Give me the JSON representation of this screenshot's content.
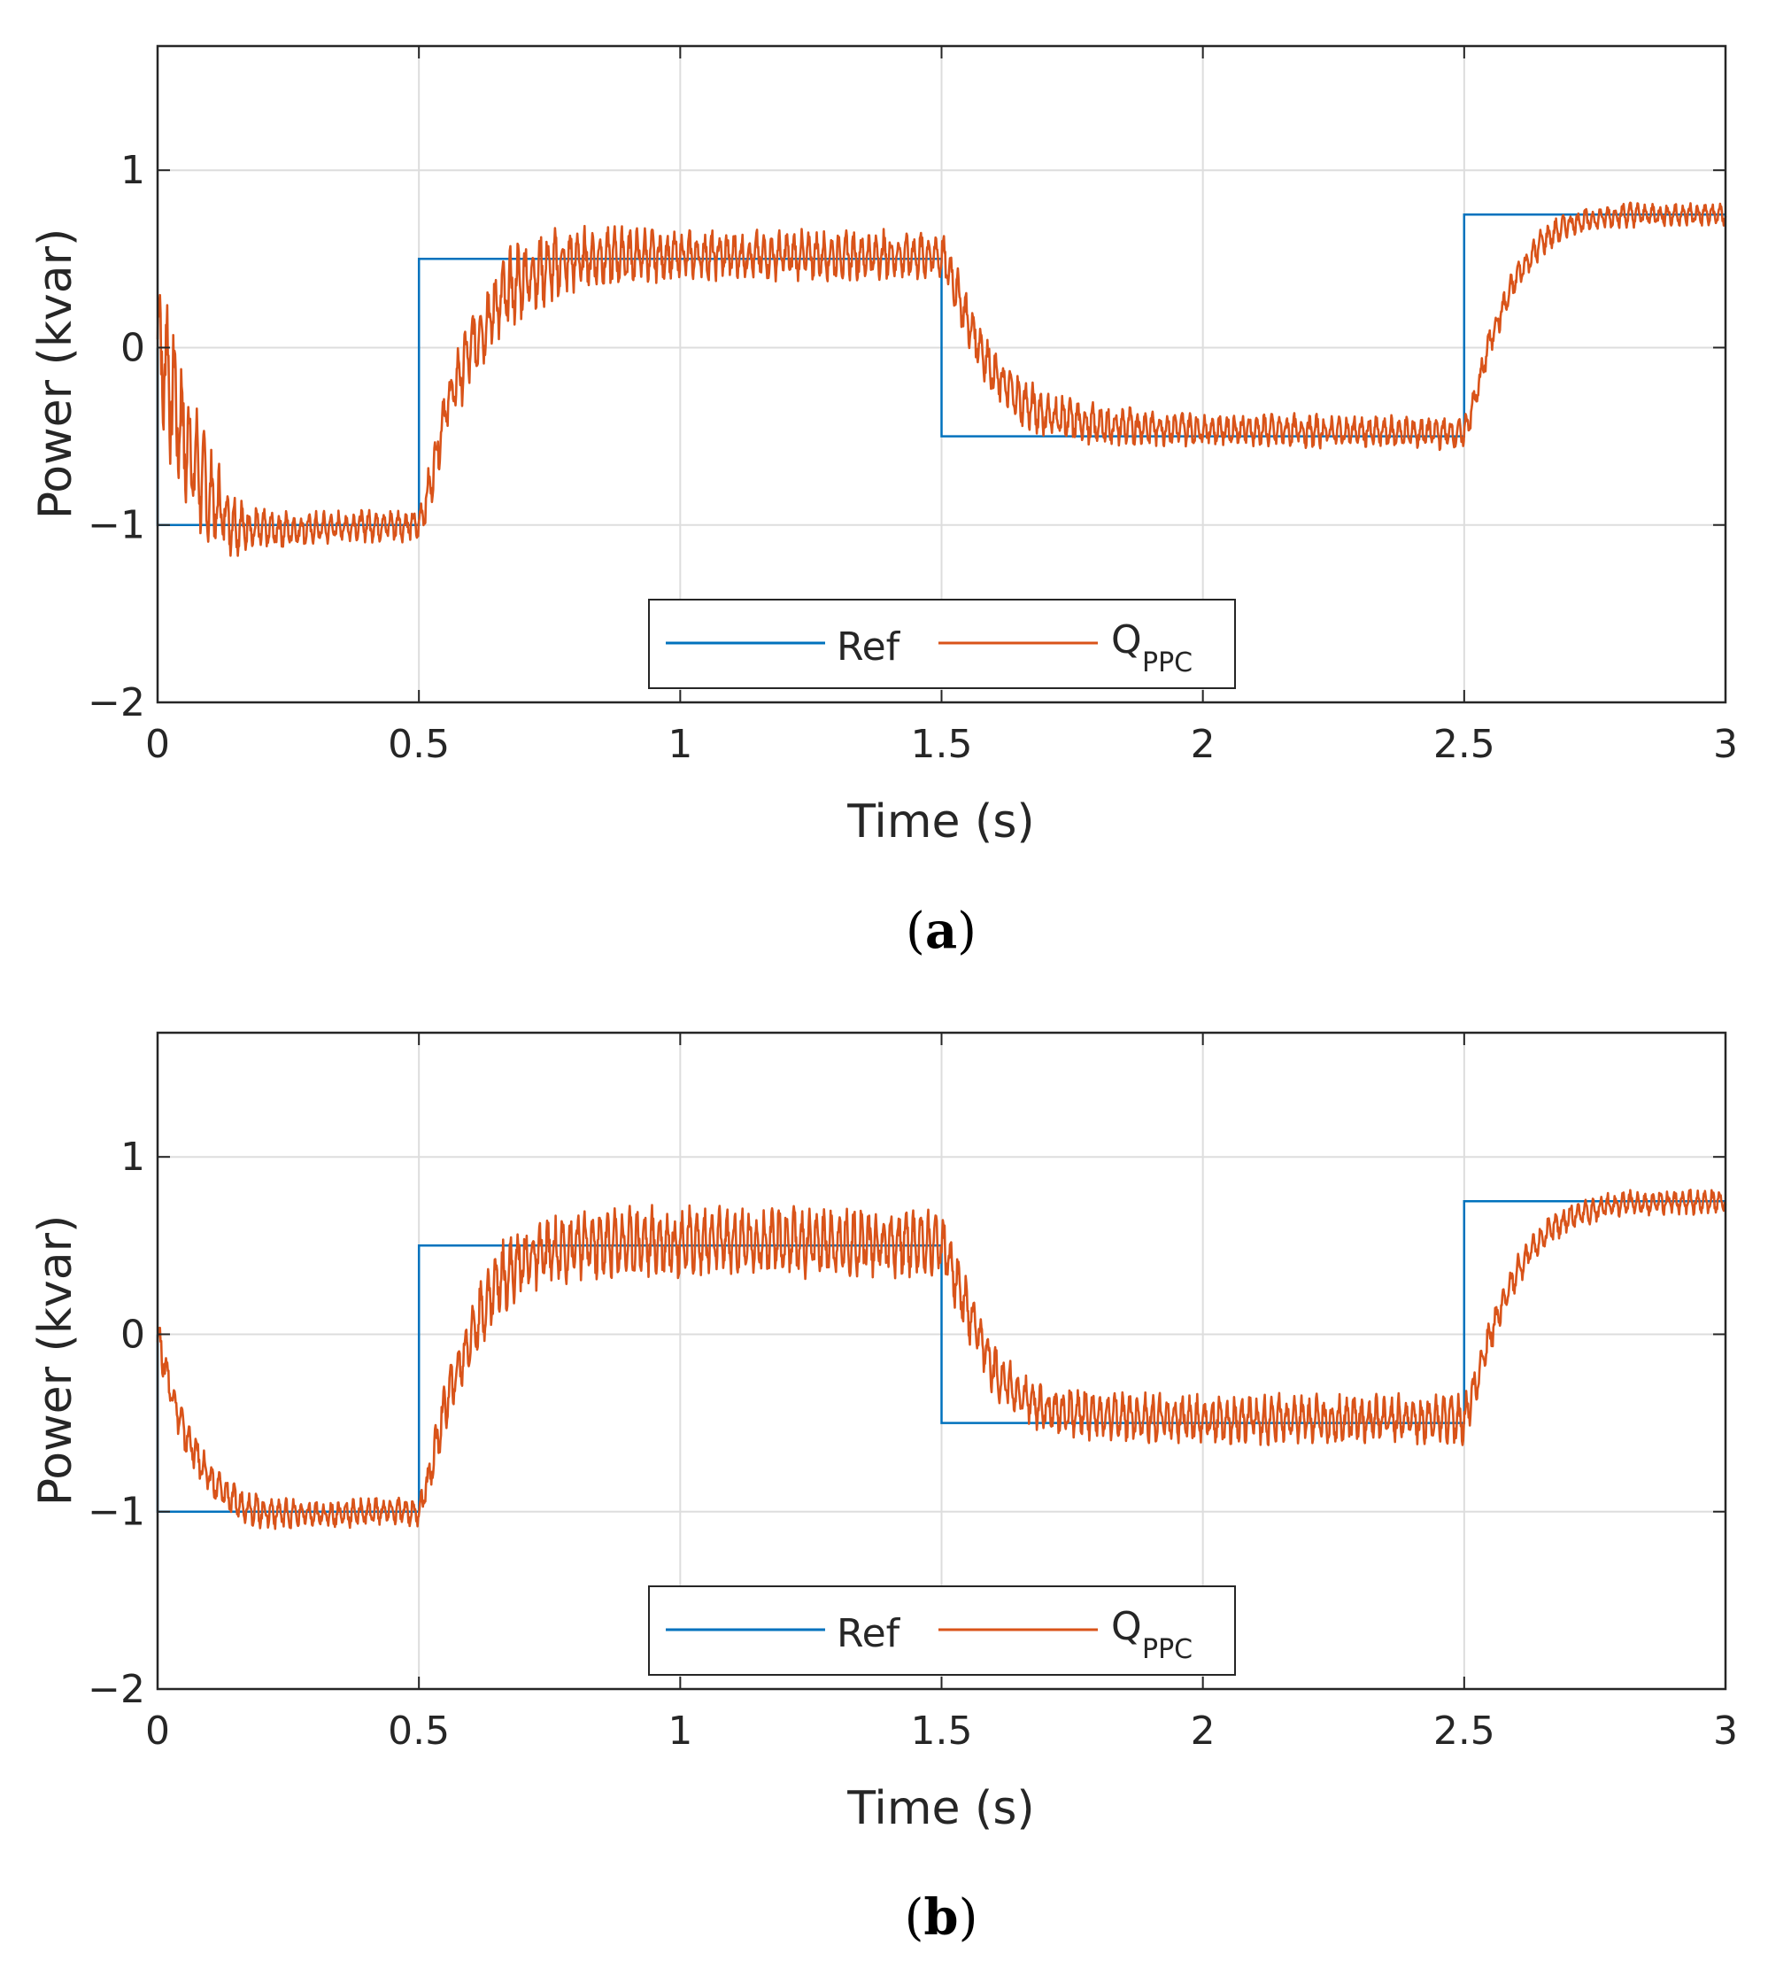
{
  "colors": {
    "ref": "#0072BD",
    "q": "#D95319",
    "grid": "#DDDDDD",
    "axis": "#262626"
  },
  "chart_data": [
    {
      "type": "line",
      "panel": "a",
      "caption_open": "(",
      "caption_letter": "a",
      "caption_close": ")",
      "xlabel": "Time (s)",
      "ylabel": "Power (kvar)",
      "xlim": [
        0,
        3
      ],
      "ylim": [
        -2,
        1.7
      ],
      "xticks": [
        0,
        0.5,
        1,
        1.5,
        2,
        2.5,
        3
      ],
      "xtick_labels": [
        "0",
        "0.5",
        "1",
        "1.5",
        "2",
        "2.5",
        "3"
      ],
      "yticks": [
        -2,
        -1,
        0,
        1
      ],
      "ytick_labels": [
        "−2",
        "−1",
        "0",
        "1"
      ],
      "grid": true,
      "legend": {
        "position": "bottom-center",
        "ref_label": "Ref",
        "q_label": "Q",
        "q_sub": "PPC"
      },
      "series": [
        {
          "name": "Ref",
          "x": [
            0,
            0,
            0.5,
            0.5,
            1.5,
            1.5,
            2.5,
            2.5,
            3
          ],
          "y": [
            0,
            -1,
            -1,
            0.5,
            0.5,
            -0.5,
            -0.5,
            0.75,
            0.75
          ]
        },
        {
          "name": "Q_PPC",
          "x": [
            0,
            0.02,
            0.05,
            0.1,
            0.15,
            0.2,
            0.3,
            0.4,
            0.5,
            0.52,
            0.55,
            0.6,
            0.65,
            0.7,
            0.8,
            0.9,
            1.0,
            1.2,
            1.4,
            1.5,
            1.52,
            1.55,
            1.6,
            1.65,
            1.7,
            1.8,
            2.0,
            2.2,
            2.4,
            2.5,
            2.52,
            2.55,
            2.6,
            2.65,
            2.7,
            2.8,
            3.0
          ],
          "y": [
            0.05,
            -0.15,
            -0.5,
            -0.85,
            -1.0,
            -1.03,
            -1.02,
            -1.0,
            -1.0,
            -0.8,
            -0.35,
            0.0,
            0.25,
            0.4,
            0.5,
            0.52,
            0.52,
            0.52,
            0.52,
            0.52,
            0.4,
            0.15,
            -0.15,
            -0.3,
            -0.38,
            -0.44,
            -0.46,
            -0.47,
            -0.48,
            -0.48,
            -0.3,
            0.05,
            0.4,
            0.6,
            0.7,
            0.75,
            0.75
          ],
          "ripple_amplitude": [
            0.45,
            0.4,
            0.35,
            0.25,
            0.15,
            0.1,
            0.08,
            0.08,
            0.08,
            0.12,
            0.15,
            0.18,
            0.2,
            0.2,
            0.16,
            0.14,
            0.12,
            0.12,
            0.12,
            0.12,
            0.12,
            0.12,
            0.12,
            0.12,
            0.12,
            0.1,
            0.08,
            0.08,
            0.08,
            0.08,
            0.08,
            0.08,
            0.07,
            0.07,
            0.06,
            0.06,
            0.06
          ]
        }
      ]
    },
    {
      "type": "line",
      "panel": "b",
      "caption_open": "(",
      "caption_letter": "b",
      "caption_close": ")",
      "xlabel": "Time (s)",
      "ylabel": "Power (kvar)",
      "xlim": [
        0,
        3
      ],
      "ylim": [
        -2,
        1.7
      ],
      "xticks": [
        0,
        0.5,
        1,
        1.5,
        2,
        2.5,
        3
      ],
      "xtick_labels": [
        "0",
        "0.5",
        "1",
        "1.5",
        "2",
        "2.5",
        "3"
      ],
      "yticks": [
        -2,
        -1,
        0,
        1
      ],
      "ytick_labels": [
        "−2",
        "−1",
        "0",
        "1"
      ],
      "grid": true,
      "legend": {
        "position": "bottom-center",
        "ref_label": "Ref",
        "q_label": "Q",
        "q_sub": "PPC"
      },
      "series": [
        {
          "name": "Ref",
          "x": [
            0,
            0,
            0.5,
            0.5,
            1.5,
            1.5,
            2.5,
            2.5,
            3
          ],
          "y": [
            0,
            -1,
            -1,
            0.5,
            0.5,
            -0.5,
            -0.5,
            0.75,
            0.75
          ]
        },
        {
          "name": "Q_PPC",
          "x": [
            0,
            0.02,
            0.05,
            0.1,
            0.15,
            0.2,
            0.3,
            0.4,
            0.5,
            0.52,
            0.55,
            0.6,
            0.65,
            0.7,
            0.8,
            0.9,
            1.0,
            1.2,
            1.4,
            1.5,
            1.52,
            1.55,
            1.6,
            1.65,
            1.7,
            1.8,
            2.0,
            2.2,
            2.4,
            2.5,
            2.52,
            2.55,
            2.6,
            2.65,
            2.7,
            2.8,
            3.0
          ],
          "y": [
            0.0,
            -0.25,
            -0.55,
            -0.82,
            -0.95,
            -1.0,
            -1.02,
            -1.0,
            -1.0,
            -0.8,
            -0.4,
            0.0,
            0.3,
            0.42,
            0.5,
            0.52,
            0.52,
            0.52,
            0.52,
            0.52,
            0.38,
            0.12,
            -0.2,
            -0.35,
            -0.42,
            -0.46,
            -0.48,
            -0.48,
            -0.48,
            -0.48,
            -0.3,
            0.0,
            0.35,
            0.55,
            0.66,
            0.74,
            0.75
          ],
          "ripple_amplitude": [
            0.1,
            0.1,
            0.1,
            0.09,
            0.08,
            0.08,
            0.07,
            0.07,
            0.07,
            0.1,
            0.13,
            0.15,
            0.17,
            0.17,
            0.17,
            0.17,
            0.17,
            0.17,
            0.17,
            0.17,
            0.16,
            0.14,
            0.13,
            0.12,
            0.12,
            0.12,
            0.12,
            0.12,
            0.12,
            0.12,
            0.1,
            0.09,
            0.08,
            0.07,
            0.07,
            0.06,
            0.06
          ]
        }
      ]
    }
  ]
}
